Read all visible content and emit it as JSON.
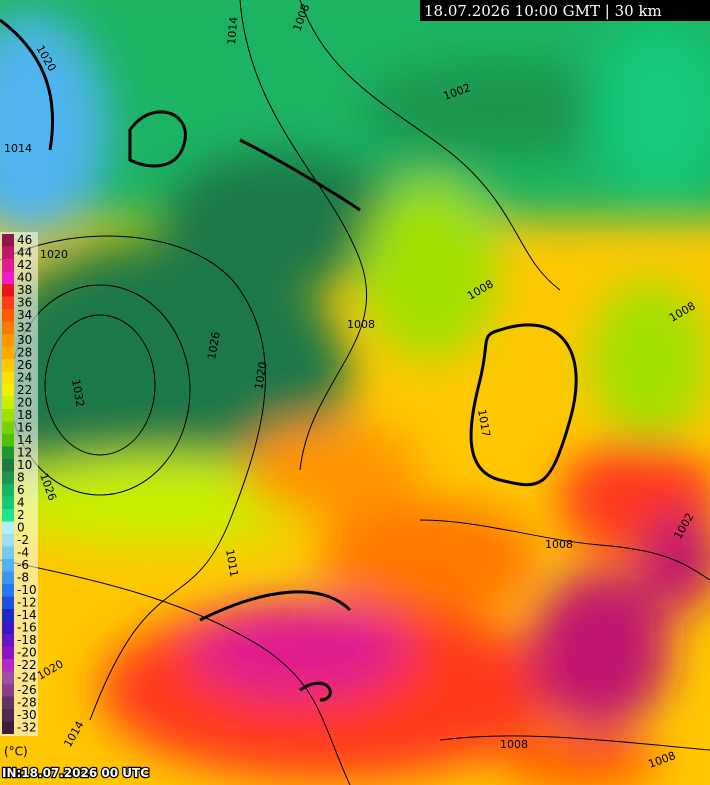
{
  "header": {
    "title": "18.07.2026 10:00 GMT | 30 km"
  },
  "legend": {
    "unit": "(°C)",
    "values": [
      46,
      44,
      42,
      40,
      38,
      36,
      34,
      32,
      30,
      28,
      26,
      24,
      22,
      20,
      18,
      16,
      14,
      12,
      10,
      8,
      6,
      4,
      2,
      0,
      -2,
      -4,
      -6,
      -8,
      -10,
      -12,
      -14,
      -16,
      -18,
      -20,
      -22,
      -24,
      -26,
      -28,
      -30,
      -32
    ],
    "colors": [
      "#8b1a4a",
      "#c0186f",
      "#e01e8f",
      "#f01ec8",
      "#e6141e",
      "#ff3a1e",
      "#ff5a00",
      "#ff7800",
      "#ff9600",
      "#ffaa00",
      "#ffc800",
      "#ffe000",
      "#f0f000",
      "#c8f000",
      "#a0e000",
      "#78d200",
      "#50c000",
      "#1e9632",
      "#1e7846",
      "#1e9650",
      "#14b464",
      "#14c878",
      "#1ee68c",
      "#b4f0f0",
      "#a0dcf0",
      "#78c8f0",
      "#50b4f0",
      "#3c96f0",
      "#2878f0",
      "#1e50e6",
      "#1e28c8",
      "#3c14c8",
      "#6414c8",
      "#8c14c8",
      "#b428c8",
      "#a050a0",
      "#8c3c8c",
      "#643264",
      "#502850",
      "#3c1e3c"
    ]
  },
  "footer": {
    "run": "IN:18.07.2026 00 UTC"
  },
  "isobars": {
    "labels": [
      "1020",
      "1014",
      "1014",
      "1008",
      "1002",
      "1020",
      "1008",
      "1008",
      "1026",
      "1020",
      "1032",
      "1026",
      "1017",
      "1011",
      "1020",
      "1014",
      "1008",
      "1008",
      "1002",
      "1008",
      "1008"
    ]
  }
}
